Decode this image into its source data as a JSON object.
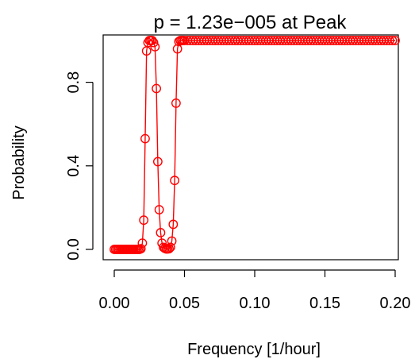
{
  "chart_data": {
    "type": "line",
    "title": "p =  1.23e−005  at Peak",
    "xlabel": "Frequency [1/hour]",
    "ylabel": "Probability",
    "xlim": [
      0.0,
      0.2
    ],
    "ylim": [
      0.0,
      1.0
    ],
    "x_ticks": [
      0.0,
      0.05,
      0.1,
      0.15,
      0.2
    ],
    "x_tick_labels": [
      "0.00",
      "0.05",
      "0.10",
      "0.15",
      "0.20"
    ],
    "y_ticks": [
      0.0,
      0.4,
      0.8
    ],
    "y_tick_labels": [
      "0.0",
      "0.4",
      "0.8"
    ],
    "grid": false,
    "series": [
      {
        "color": "#ff0000",
        "marker": "open-circle",
        "x": [
          0.0,
          0.001,
          0.002,
          0.003,
          0.004,
          0.005,
          0.006,
          0.007,
          0.008,
          0.009,
          0.01,
          0.011,
          0.012,
          0.013,
          0.014,
          0.015,
          0.016,
          0.017,
          0.018,
          0.019,
          0.02,
          0.021,
          0.022,
          0.023,
          0.024,
          0.025,
          0.026,
          0.027,
          0.028,
          0.029,
          0.03,
          0.031,
          0.032,
          0.033,
          0.034,
          0.035,
          0.036,
          0.037,
          0.038,
          0.039,
          0.04,
          0.041,
          0.042,
          0.043,
          0.044,
          0.045,
          0.046,
          0.047,
          0.048,
          0.049,
          0.05,
          0.052,
          0.054,
          0.056,
          0.058,
          0.06,
          0.062,
          0.064,
          0.066,
          0.068,
          0.07,
          0.072,
          0.074,
          0.076,
          0.078,
          0.08,
          0.082,
          0.084,
          0.086,
          0.088,
          0.09,
          0.092,
          0.094,
          0.096,
          0.098,
          0.1,
          0.102,
          0.104,
          0.106,
          0.108,
          0.11,
          0.112,
          0.114,
          0.116,
          0.118,
          0.12,
          0.122,
          0.124,
          0.126,
          0.128,
          0.13,
          0.132,
          0.134,
          0.136,
          0.138,
          0.14,
          0.142,
          0.144,
          0.146,
          0.148,
          0.15,
          0.152,
          0.154,
          0.156,
          0.158,
          0.16,
          0.162,
          0.164,
          0.166,
          0.168,
          0.17,
          0.172,
          0.174,
          0.176,
          0.178,
          0.18,
          0.182,
          0.184,
          0.186,
          0.188,
          0.19,
          0.192,
          0.194,
          0.196,
          0.198,
          0.2
        ],
        "y": [
          0.0,
          0.0,
          0.0,
          0.0,
          0.0,
          0.0,
          0.0,
          0.0,
          0.0,
          0.0,
          0.0,
          0.0,
          0.0,
          0.0,
          0.0,
          0.0,
          0.0,
          0.0,
          0.0,
          0.003,
          0.03,
          0.14,
          0.53,
          0.95,
          0.99,
          1.0,
          1.0,
          1.0,
          0.99,
          0.97,
          0.77,
          0.42,
          0.19,
          0.08,
          0.03,
          0.01,
          0.005,
          0.002,
          0.002,
          0.003,
          0.01,
          0.04,
          0.12,
          0.33,
          0.7,
          0.96,
          0.995,
          1.0,
          1.0,
          1.0,
          1.0,
          1.0,
          1.0,
          1.0,
          1.0,
          1.0,
          1.0,
          1.0,
          1.0,
          1.0,
          1.0,
          1.0,
          1.0,
          1.0,
          1.0,
          1.0,
          1.0,
          1.0,
          1.0,
          1.0,
          1.0,
          1.0,
          1.0,
          1.0,
          1.0,
          1.0,
          1.0,
          1.0,
          1.0,
          1.0,
          1.0,
          1.0,
          1.0,
          1.0,
          1.0,
          1.0,
          1.0,
          1.0,
          1.0,
          1.0,
          1.0,
          1.0,
          1.0,
          1.0,
          1.0,
          1.0,
          1.0,
          1.0,
          1.0,
          1.0,
          1.0,
          1.0,
          1.0,
          1.0,
          1.0,
          1.0,
          1.0,
          1.0,
          1.0,
          1.0,
          1.0,
          1.0,
          1.0,
          1.0,
          1.0,
          1.0,
          1.0,
          1.0,
          1.0,
          1.0,
          1.0,
          1.0,
          1.0,
          1.0,
          1.0,
          1.0
        ]
      }
    ]
  }
}
